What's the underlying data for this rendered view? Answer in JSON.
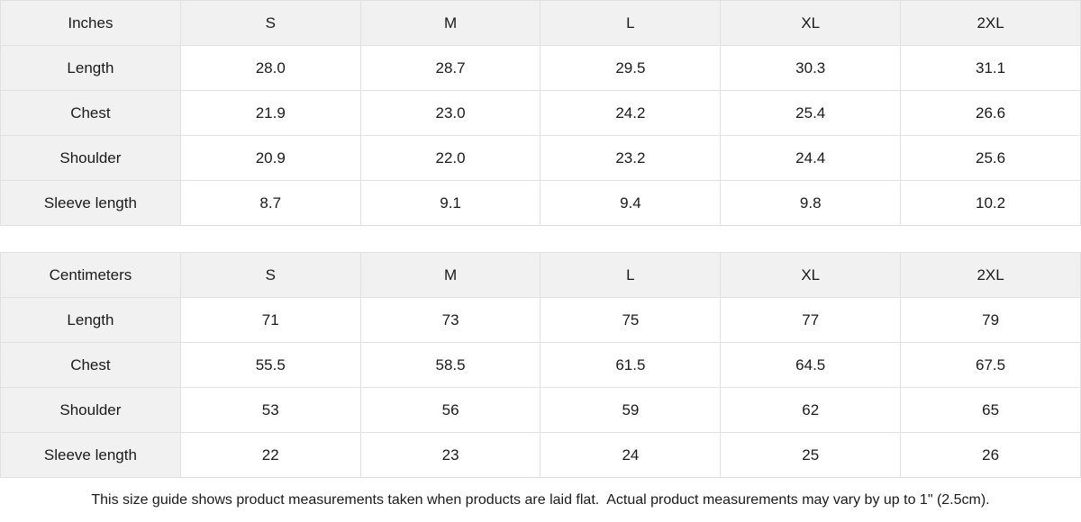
{
  "colors": {
    "header_bg": "#f1f1f1",
    "border": "#e0e0e0",
    "text": "#1a1a1a",
    "cell_bg": "#ffffff"
  },
  "tables": [
    {
      "unit": "Inches",
      "header": [
        "Inches",
        "S",
        "M",
        "L",
        "XL",
        "2XL"
      ],
      "rows": [
        {
          "label": "Length",
          "values": [
            "28.0",
            "28.7",
            "29.5",
            "30.3",
            "31.1"
          ]
        },
        {
          "label": "Chest",
          "values": [
            "21.9",
            "23.0",
            "24.2",
            "25.4",
            "26.6"
          ]
        },
        {
          "label": "Shoulder",
          "values": [
            "20.9",
            "22.0",
            "23.2",
            "24.4",
            "25.6"
          ]
        },
        {
          "label": "Sleeve length",
          "values": [
            "8.7",
            "9.1",
            "9.4",
            "9.8",
            "10.2"
          ]
        }
      ]
    },
    {
      "unit": "Centimeters",
      "header": [
        "Centimeters",
        "S",
        "M",
        "L",
        "XL",
        "2XL"
      ],
      "rows": [
        {
          "label": "Length",
          "values": [
            "71",
            "73",
            "75",
            "77",
            "79"
          ]
        },
        {
          "label": "Chest",
          "values": [
            "55.5",
            "58.5",
            "61.5",
            "64.5",
            "67.5"
          ]
        },
        {
          "label": "Shoulder",
          "values": [
            "53",
            "56",
            "59",
            "62",
            "65"
          ]
        },
        {
          "label": "Sleeve length",
          "values": [
            "22",
            "23",
            "24",
            "25",
            "26"
          ]
        }
      ]
    }
  ],
  "footer": {
    "note": "This size guide shows product measurements taken when products are laid flat.  Actual product measurements may vary by up to 1\" (2.5cm)."
  }
}
